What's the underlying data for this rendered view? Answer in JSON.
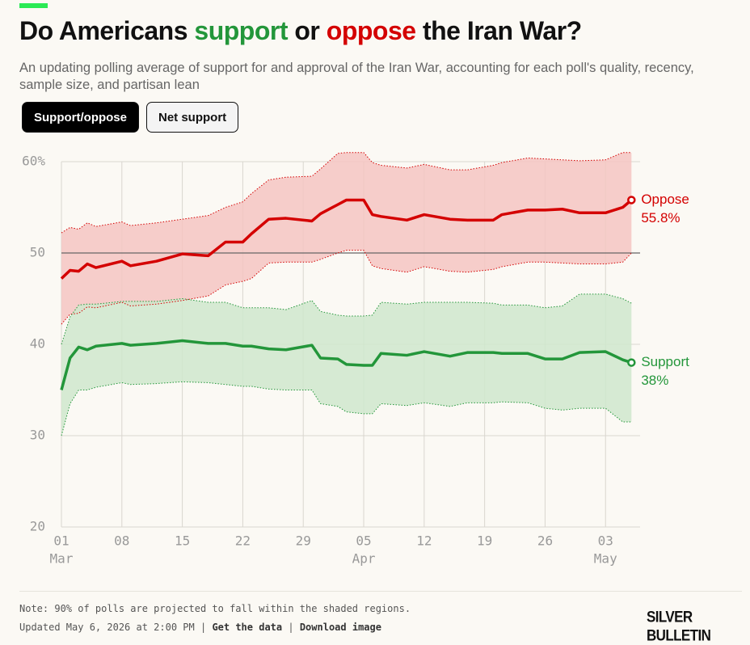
{
  "chart_data": {
    "type": "line",
    "title": [
      {
        "text": "Do Americans "
      },
      {
        "text": "support",
        "color": "#23963a"
      },
      {
        "text": " or "
      },
      {
        "text": "oppose",
        "color": "#d40000"
      },
      {
        "text": " the Iran War?"
      }
    ],
    "subtitle": "An updating polling average of support for and approval of the Iran War, accounting for each poll's quality, recency, sample size, and partisan lean",
    "buttons": [
      "Support/oppose",
      "Net support"
    ],
    "x": [
      "03-01",
      "03-02",
      "03-03",
      "03-04",
      "03-05",
      "03-08",
      "03-09",
      "03-12",
      "03-15",
      "03-18",
      "03-20",
      "03-22",
      "03-23",
      "03-25",
      "03-27",
      "03-30",
      "03-31",
      "04-02",
      "04-03",
      "04-05",
      "04-06",
      "04-07",
      "04-10",
      "04-12",
      "04-15",
      "04-17",
      "04-20",
      "04-21",
      "04-24",
      "04-26",
      "04-28",
      "04-30",
      "05-03",
      "05-05",
      "05-06"
    ],
    "xlim": [
      "03-01",
      "05-07"
    ],
    "xticks": [
      {
        "value": "03-01",
        "label": "01",
        "month": "Mar"
      },
      {
        "value": "03-08",
        "label": "08"
      },
      {
        "value": "03-15",
        "label": "15"
      },
      {
        "value": "03-22",
        "label": "22"
      },
      {
        "value": "03-29",
        "label": "29"
      },
      {
        "value": "04-05",
        "label": "05",
        "month": "Apr"
      },
      {
        "value": "04-12",
        "label": "12"
      },
      {
        "value": "04-19",
        "label": "19"
      },
      {
        "value": "04-26",
        "label": "26"
      },
      {
        "value": "05-03",
        "label": "03",
        "month": "May"
      }
    ],
    "ylim": [
      20,
      60
    ],
    "yticks": [
      20,
      30,
      40,
      50,
      {
        "value": 60,
        "label": "60%"
      }
    ],
    "reference_line": 50,
    "grid": true,
    "series": [
      {
        "name": "Oppose",
        "color": "#d40000",
        "band_color": "#f4c6c2",
        "values": [
          47.2,
          48.1,
          48.0,
          48.8,
          48.4,
          49.1,
          48.6,
          49.1,
          49.9,
          49.7,
          51.2,
          51.2,
          52.1,
          53.7,
          53.8,
          53.5,
          54.3,
          55.3,
          55.8,
          55.8,
          54.2,
          54.0,
          53.6,
          54.2,
          53.7,
          53.6,
          53.6,
          54.2,
          54.7,
          54.7,
          54.8,
          54.4,
          54.4,
          55.0,
          55.8
        ],
        "value_labels": [
          null,
          null,
          null,
          null,
          null,
          null,
          null,
          null,
          null,
          null,
          null,
          null,
          null,
          null,
          null,
          null,
          null,
          null,
          null,
          null,
          null,
          null,
          null,
          null,
          null,
          null,
          null,
          null,
          null,
          null,
          null,
          null,
          null,
          null,
          "55.8%"
        ],
        "upper": [
          52.2,
          52.8,
          52.6,
          53.3,
          52.9,
          53.4,
          53.0,
          53.3,
          53.7,
          54.1,
          55.0,
          55.6,
          56.5,
          58.0,
          58.3,
          58.4,
          59.2,
          60.9,
          61.0,
          61.0,
          59.9,
          59.6,
          59.3,
          59.7,
          59.1,
          59.1,
          59.6,
          59.9,
          60.4,
          60.3,
          60.2,
          60.1,
          60.2,
          61.0,
          61.0
        ],
        "lower": [
          42.2,
          43.3,
          43.4,
          44.1,
          44.0,
          44.6,
          44.2,
          44.4,
          44.8,
          45.3,
          46.5,
          46.9,
          47.2,
          48.9,
          49.0,
          49.0,
          49.3,
          50.0,
          50.3,
          50.3,
          48.6,
          48.3,
          47.9,
          48.5,
          48.0,
          47.9,
          48.2,
          48.5,
          49.0,
          49.0,
          48.9,
          48.8,
          48.8,
          49.0,
          50.0
        ]
      },
      {
        "name": "Support",
        "color": "#23963a",
        "band_color": "#cfe7cd",
        "values": [
          35.0,
          38.5,
          39.7,
          39.4,
          39.8,
          40.1,
          39.9,
          40.1,
          40.4,
          40.1,
          40.1,
          39.8,
          39.8,
          39.5,
          39.4,
          39.9,
          38.5,
          38.4,
          37.8,
          37.7,
          37.7,
          39.0,
          38.8,
          39.2,
          38.7,
          39.1,
          39.1,
          39.0,
          39.0,
          38.4,
          38.4,
          39.1,
          39.2,
          38.3,
          38.0
        ],
        "value_labels": [
          null,
          null,
          null,
          null,
          null,
          null,
          null,
          null,
          null,
          null,
          null,
          null,
          null,
          null,
          null,
          null,
          null,
          null,
          null,
          null,
          null,
          null,
          null,
          null,
          null,
          null,
          null,
          null,
          null,
          null,
          null,
          null,
          null,
          null,
          "38%"
        ],
        "upper": [
          40.0,
          43.0,
          44.3,
          44.4,
          44.4,
          44.7,
          44.7,
          44.7,
          45.0,
          44.6,
          44.6,
          44.0,
          44.0,
          44.0,
          43.8,
          44.8,
          43.6,
          43.2,
          43.1,
          43.1,
          43.2,
          44.6,
          44.4,
          44.6,
          44.6,
          44.6,
          44.5,
          44.3,
          44.3,
          44.0,
          44.2,
          45.5,
          45.5,
          45.0,
          44.5
        ],
        "lower": [
          30.0,
          33.5,
          35.0,
          35.0,
          35.3,
          35.8,
          35.6,
          35.7,
          35.9,
          35.8,
          35.6,
          35.4,
          35.4,
          35.1,
          35.0,
          35.0,
          33.5,
          33.2,
          32.6,
          32.4,
          32.4,
          33.5,
          33.3,
          33.6,
          33.2,
          33.6,
          33.6,
          33.7,
          33.6,
          33.0,
          32.8,
          33.0,
          33.0,
          31.5,
          31.5
        ]
      }
    ],
    "note": "Note: 90% of polls are projected to fall within the shaded regions.",
    "updated": "Updated May 6, 2026 at 2:00 PM",
    "links": [
      "Get the data",
      "Download image"
    ],
    "brand": "SILVER BULLETIN"
  }
}
